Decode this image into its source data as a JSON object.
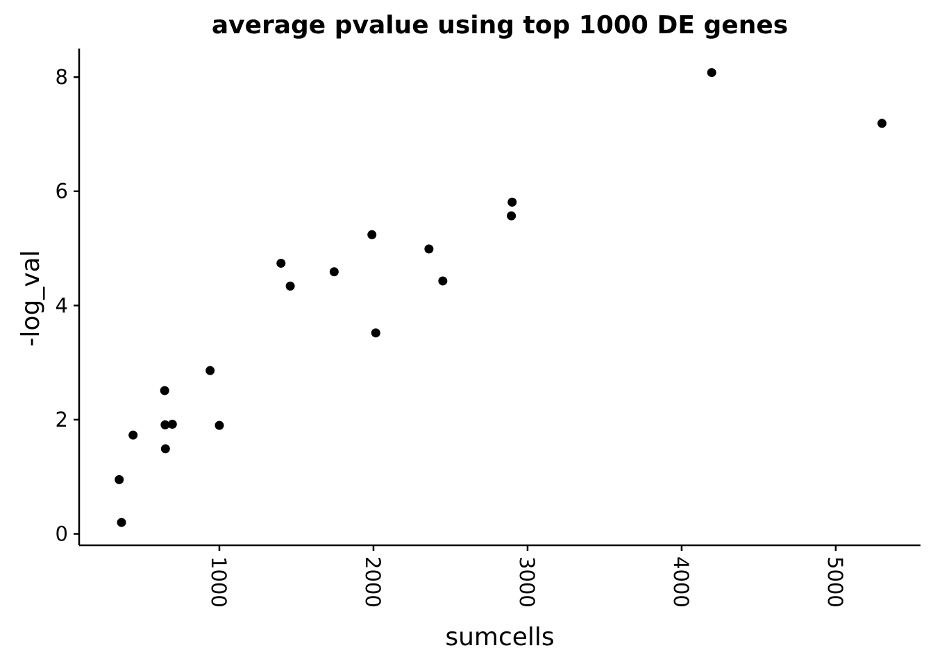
{
  "chart_data": {
    "type": "scatter",
    "title": "average pvalue using top 1000 DE genes",
    "xlabel": "sumcells",
    "ylabel": "-log_val",
    "xlim": [
      90,
      5550
    ],
    "ylim": [
      -0.2,
      8.5
    ],
    "xticks": [
      1000,
      2000,
      3000,
      4000,
      5000
    ],
    "yticks": [
      0,
      2,
      4,
      6,
      8
    ],
    "x_tick_rotation": 90,
    "grid": false,
    "point_color": "#000000",
    "points": [
      {
        "x": 350,
        "y": 0.95
      },
      {
        "x": 365,
        "y": 0.2
      },
      {
        "x": 440,
        "y": 1.73
      },
      {
        "x": 645,
        "y": 2.51
      },
      {
        "x": 648,
        "y": 1.91
      },
      {
        "x": 650,
        "y": 1.49
      },
      {
        "x": 695,
        "y": 1.92
      },
      {
        "x": 940,
        "y": 2.86
      },
      {
        "x": 1000,
        "y": 1.9
      },
      {
        "x": 1400,
        "y": 4.74
      },
      {
        "x": 1460,
        "y": 4.34
      },
      {
        "x": 1745,
        "y": 4.59
      },
      {
        "x": 1990,
        "y": 5.24
      },
      {
        "x": 2015,
        "y": 3.52
      },
      {
        "x": 2360,
        "y": 4.99
      },
      {
        "x": 2450,
        "y": 4.43
      },
      {
        "x": 2895,
        "y": 5.57
      },
      {
        "x": 2900,
        "y": 5.81
      },
      {
        "x": 4195,
        "y": 8.08
      },
      {
        "x": 5300,
        "y": 7.19
      }
    ]
  }
}
